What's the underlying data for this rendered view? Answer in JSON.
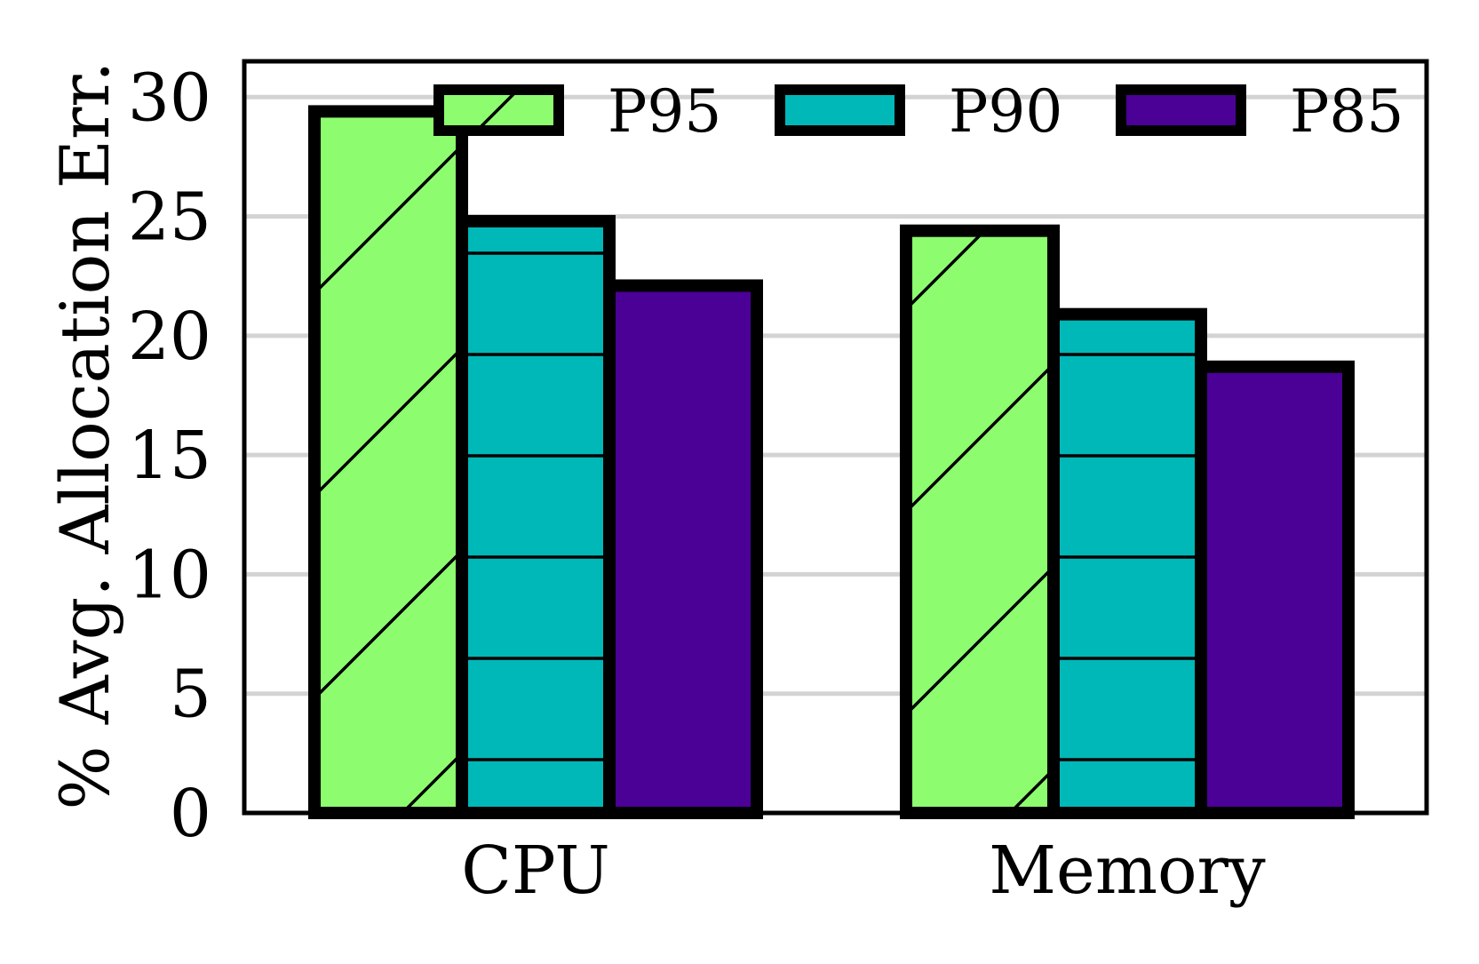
{
  "chart_data": {
    "type": "bar",
    "categories": [
      "CPU",
      "Memory"
    ],
    "series": [
      {
        "name": "P95",
        "values": [
          29.4,
          24.4
        ],
        "color": "#8dfd6f",
        "hatch": "diagonal"
      },
      {
        "name": "P90",
        "values": [
          24.8,
          20.9
        ],
        "color": "#00b8b8",
        "hatch": "horizontal"
      },
      {
        "name": "P85",
        "values": [
          22.1,
          18.7
        ],
        "color": "#4b0096",
        "hatch": "none"
      }
    ],
    "xlabel": "",
    "ylabel": "% Avg. Allocation Err.",
    "ylim": [
      0,
      31.5
    ],
    "yticks": [
      0,
      5,
      10,
      15,
      20,
      25,
      30
    ],
    "ytick_labels": [
      "0",
      "5",
      "10",
      "15",
      "20",
      "25",
      "30"
    ],
    "grid": "y",
    "legend_position": "top-right",
    "legend_columns": 3
  }
}
